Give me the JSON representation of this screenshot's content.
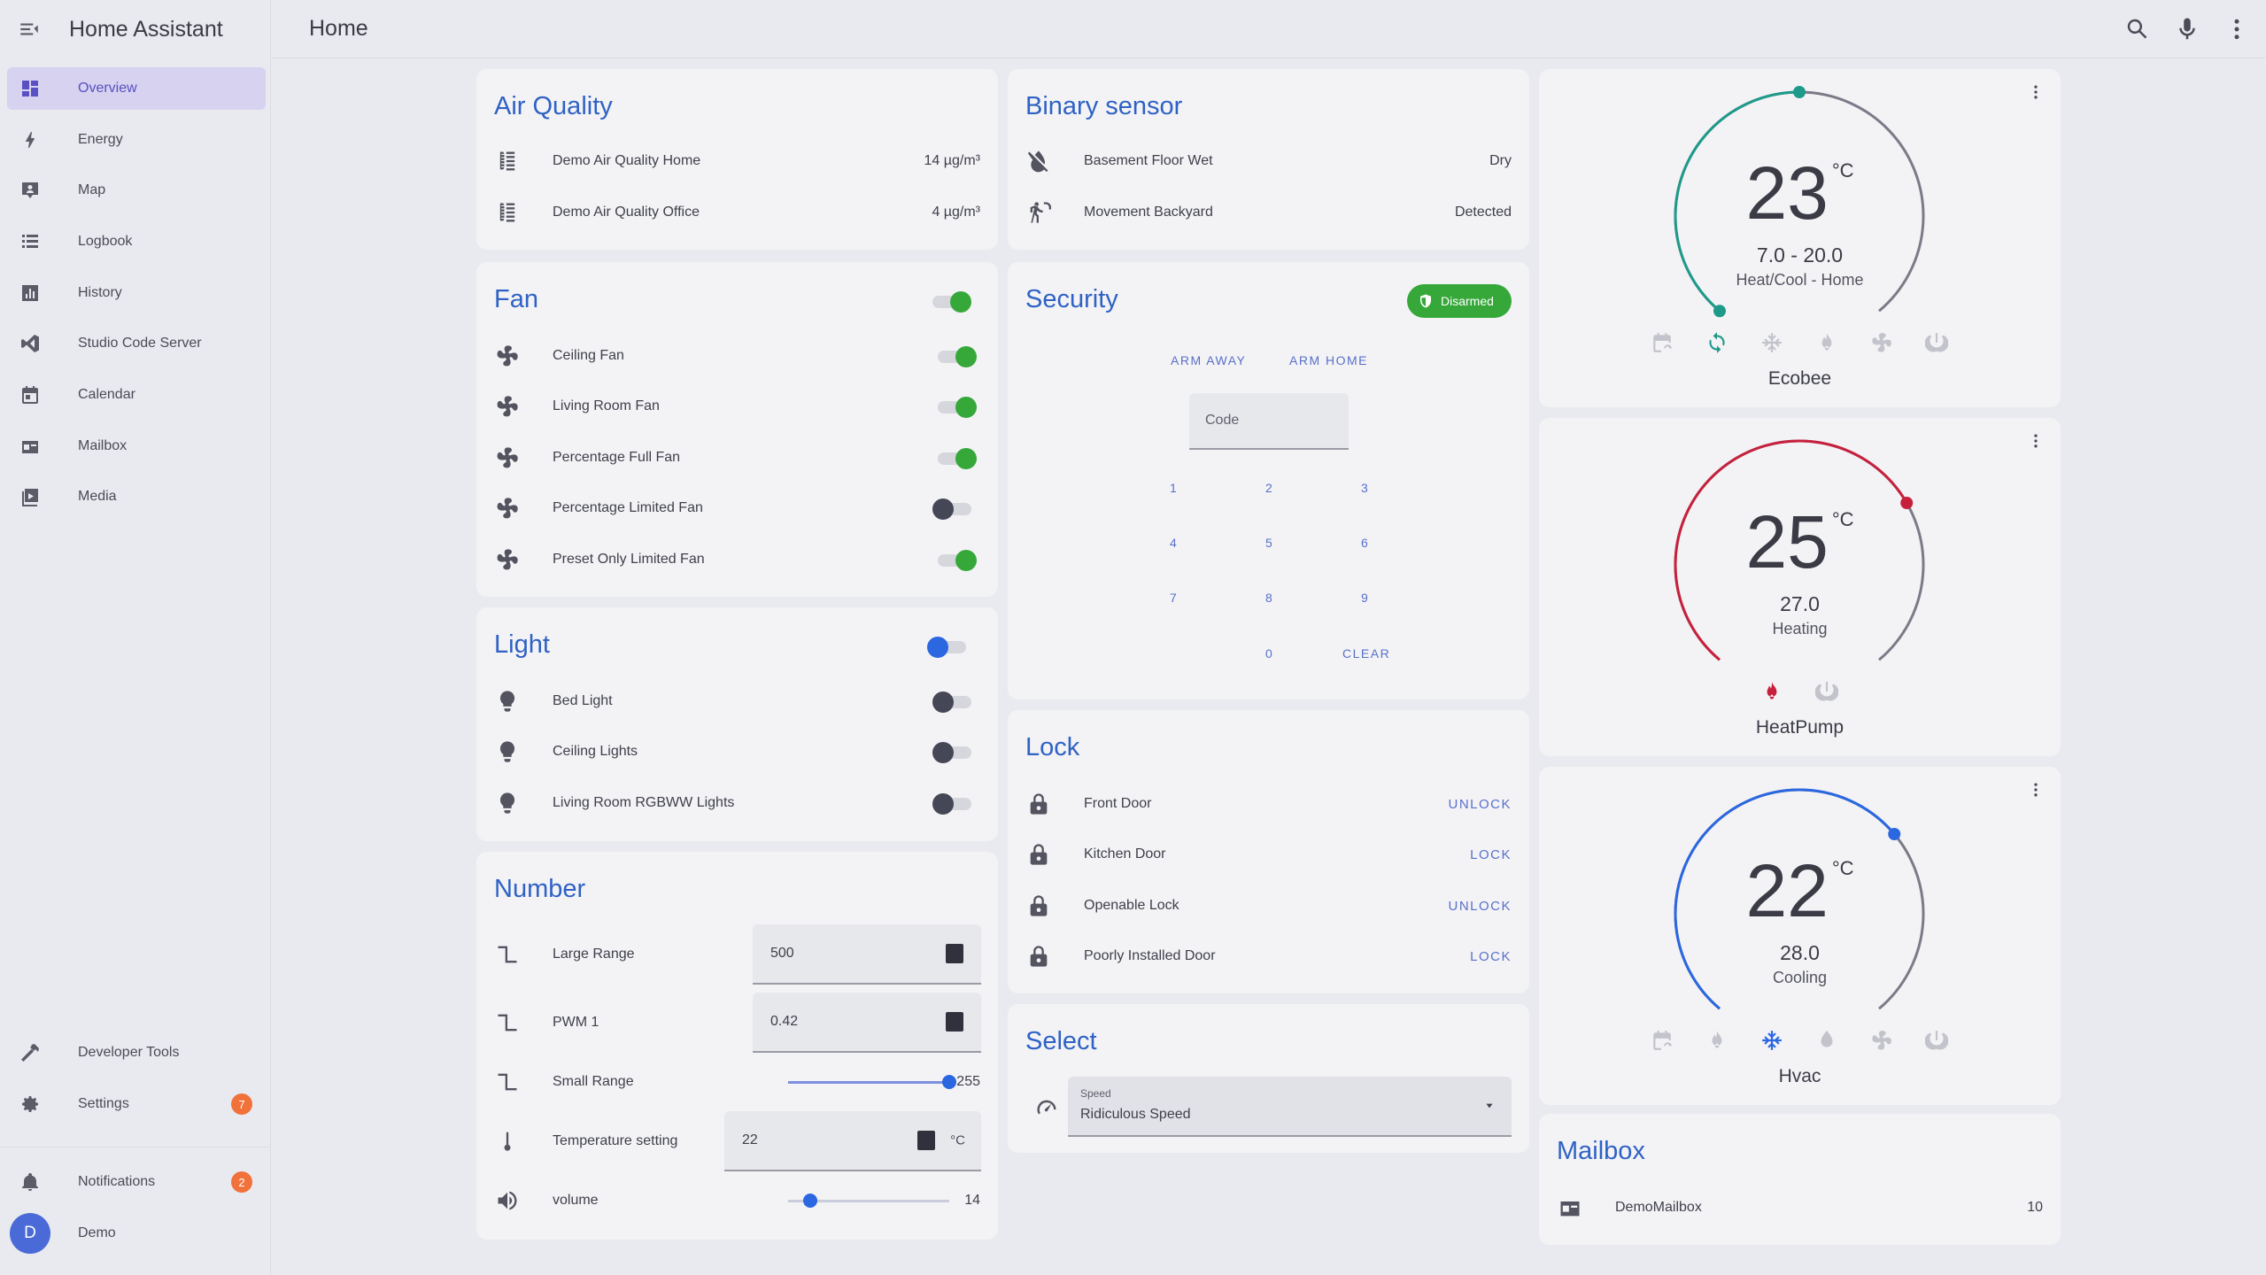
{
  "app_title": "Home Assistant",
  "page_title": "Home",
  "sidebar": {
    "items": [
      {
        "label": "Overview",
        "icon": "overview-icon",
        "active": true
      },
      {
        "label": "Energy",
        "icon": "energy-icon"
      },
      {
        "label": "Map",
        "icon": "map-icon"
      },
      {
        "label": "Logbook",
        "icon": "logbook-icon"
      },
      {
        "label": "History",
        "icon": "history-icon"
      },
      {
        "label": "Studio Code Server",
        "icon": "vscode-icon"
      },
      {
        "label": "Calendar",
        "icon": "calendar-icon"
      },
      {
        "label": "Mailbox",
        "icon": "mailbox-icon"
      },
      {
        "label": "Media",
        "icon": "media-icon"
      }
    ],
    "developer_tools": "Developer Tools",
    "settings": "Settings",
    "settings_badge": "7",
    "notifications": "Notifications",
    "notifications_badge": "2",
    "user_initial": "D",
    "user_name": "Demo"
  },
  "air_quality": {
    "title": "Air Quality",
    "rows": [
      {
        "label": "Demo Air Quality Home",
        "value": "14 µg/m³"
      },
      {
        "label": "Demo Air Quality Office",
        "value": "4 µg/m³"
      }
    ]
  },
  "fan": {
    "title": "Fan",
    "master_on": true,
    "rows": [
      {
        "label": "Ceiling Fan",
        "on": true
      },
      {
        "label": "Living Room Fan",
        "on": true
      },
      {
        "label": "Percentage Full Fan",
        "on": true
      },
      {
        "label": "Percentage Limited Fan",
        "on": false
      },
      {
        "label": "Preset Only Limited Fan",
        "on": true
      }
    ]
  },
  "light": {
    "title": "Light",
    "rows": [
      {
        "label": "Bed Light"
      },
      {
        "label": "Ceiling Lights"
      },
      {
        "label": "Living Room RGBWW Lights"
      }
    ]
  },
  "number": {
    "title": "Number",
    "large_range": {
      "label": "Large Range",
      "value": "500"
    },
    "pwm": {
      "label": "PWM 1",
      "value": "0.42"
    },
    "small_range": {
      "label": "Small Range",
      "value": "255",
      "fraction": 1.0
    },
    "temperature": {
      "label": "Temperature setting",
      "value": "22",
      "unit": "°C"
    },
    "volume": {
      "label": "volume",
      "value": "14",
      "fraction": 0.14
    }
  },
  "binary_sensor": {
    "title": "Binary sensor",
    "rows": [
      {
        "label": "Basement Floor Wet",
        "value": "Dry"
      },
      {
        "label": "Movement Backyard",
        "value": "Detected"
      }
    ]
  },
  "security": {
    "title": "Security",
    "status": "Disarmed",
    "arm_away": "ARM AWAY",
    "arm_home": "ARM HOME",
    "code_placeholder": "Code",
    "keys": [
      "1",
      "2",
      "3",
      "4",
      "5",
      "6",
      "7",
      "8",
      "9",
      "0"
    ],
    "clear": "CLEAR"
  },
  "lock": {
    "title": "Lock",
    "rows": [
      {
        "label": "Front Door",
        "action": "UNLOCK"
      },
      {
        "label": "Kitchen Door",
        "action": "LOCK"
      },
      {
        "label": "Openable Lock",
        "action": "UNLOCK"
      },
      {
        "label": "Poorly Installed Door",
        "action": "LOCK"
      }
    ]
  },
  "select": {
    "title": "Select",
    "field_label": "Speed",
    "value": "Ridiculous Speed"
  },
  "thermostats": [
    {
      "name": "Ecobee",
      "temp": "23",
      "unit": "°C",
      "target": "7.0 - 20.0",
      "mode": "Heat/Cool - Home",
      "color": "#1e9a8a"
    },
    {
      "name": "HeatPump",
      "temp": "25",
      "unit": "°C",
      "target": "27.0",
      "mode": "Heating",
      "color": "#c8203c"
    },
    {
      "name": "Hvac",
      "temp": "22",
      "unit": "°C",
      "target": "28.0",
      "mode": "Cooling",
      "color": "#2a67e0"
    }
  ],
  "mailbox": {
    "title": "Mailbox",
    "rows": [
      {
        "label": "DemoMailbox",
        "value": "10"
      }
    ]
  }
}
